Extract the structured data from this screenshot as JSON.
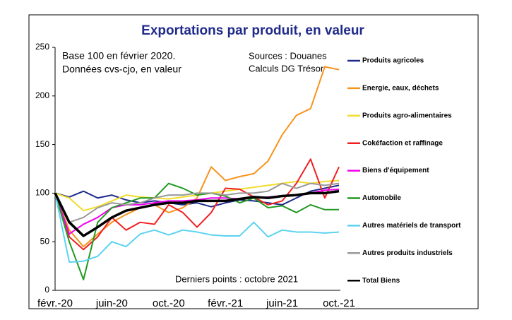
{
  "chart_data": {
    "type": "line",
    "title": "Exportations par produit, en valeur",
    "annotations": [
      "Base 100 en février 2020.",
      "Données cvs-cjo, en valeur",
      "Sources : Douanes",
      "Calculs DG Trésor",
      "Derniers points : octobre 2021"
    ],
    "categories": [
      "févr.-20",
      null,
      null,
      null,
      "juin-20",
      null,
      null,
      null,
      "oct.-20",
      null,
      null,
      null,
      "févr.-21",
      null,
      null,
      null,
      "juin-21",
      null,
      null,
      null,
      "oct.-21"
    ],
    "ylim": [
      0,
      250
    ],
    "yticks": [
      0,
      50,
      100,
      150,
      200,
      250
    ],
    "series": [
      {
        "name": "Produits agricoles",
        "color": "#1f2a8a",
        "values": [
          100,
          96,
          102,
          95,
          98,
          93,
          90,
          92,
          90,
          88,
          90,
          86,
          90,
          93,
          92,
          90,
          88,
          95,
          102,
          105,
          108
        ]
      },
      {
        "name": "Energie, eaux, déchets",
        "color": "#f7941d",
        "values": [
          100,
          62,
          45,
          58,
          70,
          78,
          85,
          88,
          80,
          85,
          95,
          127,
          113,
          117,
          120,
          133,
          160,
          180,
          187,
          230,
          227
        ]
      },
      {
        "name": "Produits agro-alimentaires",
        "color": "#f2dc2c",
        "values": [
          100,
          95,
          82,
          86,
          92,
          98,
          96,
          95,
          94,
          96,
          98,
          100,
          102,
          104,
          106,
          108,
          110,
          112,
          110,
          112,
          113
        ]
      },
      {
        "name": "Cokéfaction et raffinage",
        "color": "#f02020",
        "values": [
          100,
          55,
          42,
          55,
          75,
          62,
          70,
          68,
          88,
          80,
          65,
          80,
          105,
          104,
          96,
          88,
          92,
          110,
          135,
          95,
          127
        ]
      },
      {
        "name": "Biens d'équipement",
        "color": "#f000f0",
        "values": [
          100,
          58,
          68,
          75,
          85,
          88,
          88,
          90,
          92,
          92,
          93,
          95,
          95,
          94,
          95,
          96,
          97,
          98,
          100,
          103,
          104
        ]
      },
      {
        "name": "Automobile",
        "color": "#229922",
        "values": [
          100,
          50,
          11,
          70,
          85,
          90,
          95,
          95,
          110,
          105,
          98,
          100,
          97,
          90,
          95,
          85,
          87,
          80,
          88,
          83,
          83
        ]
      },
      {
        "name": "Autres matériels de transport",
        "color": "#5bd3f0",
        "values": [
          100,
          29,
          30,
          35,
          50,
          45,
          58,
          62,
          57,
          62,
          60,
          57,
          56,
          56,
          70,
          55,
          62,
          60,
          60,
          59,
          60
        ]
      },
      {
        "name": "Autres produits industriels",
        "color": "#999999",
        "values": [
          100,
          70,
          75,
          85,
          90,
          88,
          90,
          95,
          98,
          98,
          100,
          100,
          98,
          100,
          100,
          102,
          110,
          105,
          110,
          108,
          110
        ]
      },
      {
        "name": "Total Biens",
        "color": "#000000",
        "values": [
          100,
          70,
          56,
          65,
          75,
          82,
          85,
          88,
          90,
          90,
          92,
          92,
          92,
          94,
          96,
          95,
          97,
          98,
          100,
          100,
          102
        ]
      }
    ]
  }
}
